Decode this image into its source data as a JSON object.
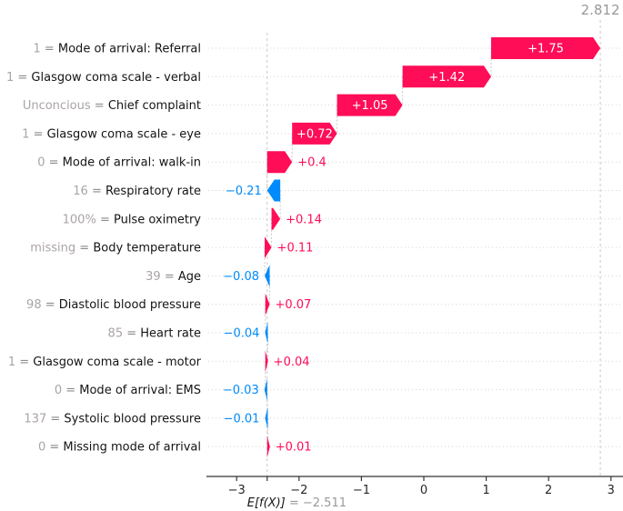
{
  "chart_data": {
    "type": "waterfall",
    "title": "",
    "fx_label": "2.812",
    "base_value": -2.511,
    "base_label_name": "E[f(X)]",
    "base_label_value": "= −2.511",
    "xlim": [
      -3.47,
      3.19
    ],
    "grid": "row-dotted",
    "legend": "none",
    "xticks": [
      -3,
      -2,
      -1,
      0,
      1,
      2,
      3
    ],
    "xtick_labels": [
      "−3",
      "−2",
      "−1",
      "0",
      "1",
      "2",
      "3"
    ],
    "colors": {
      "positive": "#ff0d57",
      "negative": "#008bfb",
      "grid_line": "#d4d4d4",
      "dash_line": "#c9c9c9",
      "axis": "#333333",
      "value_text": "#aba4a4",
      "equals_text": "#8c8c8c",
      "name_text": "#141414",
      "muted_text": "#999999",
      "inside_label": "#ffffff"
    },
    "features": [
      {
        "value_label": "1",
        "name": "Mode of arrival: Referral",
        "contribution": 1.75,
        "display": "+1.75"
      },
      {
        "value_label": "1",
        "name": "Glasgow coma scale - verbal",
        "contribution": 1.42,
        "display": "+1.42"
      },
      {
        "value_label": "Unconcious",
        "name": "Chief complaint",
        "contribution": 1.05,
        "display": "+1.05"
      },
      {
        "value_label": "1",
        "name": "Glasgow coma scale - eye",
        "contribution": 0.72,
        "display": "+0.72"
      },
      {
        "value_label": "0",
        "name": "Mode of arrival: walk-in",
        "contribution": 0.4,
        "display": "+0.4"
      },
      {
        "value_label": "16",
        "name": "Respiratory rate",
        "contribution": -0.21,
        "display": "−0.21"
      },
      {
        "value_label": "100%",
        "name": "Pulse oximetry",
        "contribution": 0.14,
        "display": "+0.14"
      },
      {
        "value_label": "missing",
        "name": "Body temperature",
        "contribution": 0.11,
        "display": "+0.11"
      },
      {
        "value_label": "39",
        "name": "Age",
        "contribution": -0.08,
        "display": "−0.08"
      },
      {
        "value_label": "98",
        "name": "Diastolic blood pressure",
        "contribution": 0.07,
        "display": "+0.07"
      },
      {
        "value_label": "85",
        "name": "Heart rate",
        "contribution": -0.04,
        "display": "−0.04"
      },
      {
        "value_label": "1",
        "name": "Glasgow coma scale - motor",
        "contribution": 0.04,
        "display": "+0.04"
      },
      {
        "value_label": "0",
        "name": "Mode of arrival: EMS",
        "contribution": -0.03,
        "display": "−0.03"
      },
      {
        "value_label": "137",
        "name": "Systolic blood pressure",
        "contribution": -0.01,
        "display": "−0.01"
      },
      {
        "value_label": "0",
        "name": "Missing mode of arrival",
        "contribution": 0.01,
        "display": "+0.01"
      }
    ]
  }
}
